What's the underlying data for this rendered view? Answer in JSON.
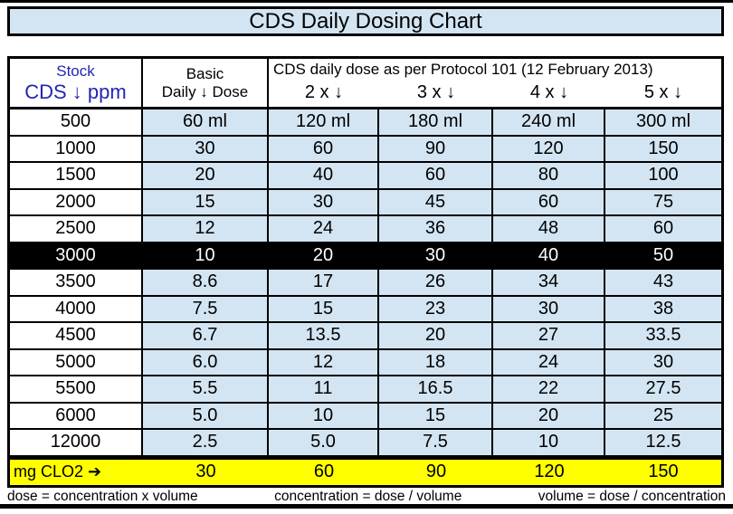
{
  "title": "CDS Daily Dosing Chart",
  "colors": {
    "light_blue": "#d3e5f3",
    "yellow": "#ffff00",
    "header_text_blue": "#2424b4",
    "highlight_bg": "#000000",
    "highlight_text": "#ffffff"
  },
  "table": {
    "header": {
      "stock_line1": "Stock",
      "stock_line2": "CDS ↓ ppm",
      "basic_line1": "Basic",
      "basic_line2": "Daily ↓ Dose",
      "protocol": "CDS daily dose as per Protocol 101 (12 February 2013)",
      "multipliers": [
        "2 x ↓",
        "3 x ↓",
        "4 x ↓",
        "5 x ↓"
      ]
    },
    "rows": [
      {
        "ppm": "500",
        "cells": [
          "60 ml",
          "120 ml",
          "180 ml",
          "240 ml",
          "300 ml"
        ]
      },
      {
        "ppm": "1000",
        "cells": [
          "30",
          "60",
          "90",
          "120",
          "150"
        ]
      },
      {
        "ppm": "1500",
        "cells": [
          "20",
          "40",
          "60",
          "80",
          "100"
        ]
      },
      {
        "ppm": "2000",
        "cells": [
          "15",
          "30",
          "45",
          "60",
          "75"
        ]
      },
      {
        "ppm": "2500",
        "cells": [
          "12",
          "24",
          "36",
          "48",
          "60"
        ]
      },
      {
        "ppm": "3000",
        "cells": [
          "10",
          "20",
          "30",
          "40",
          "50"
        ]
      },
      {
        "ppm": "3500",
        "cells": [
          "8.6",
          "17",
          "26",
          "34",
          "43"
        ]
      },
      {
        "ppm": "4000",
        "cells": [
          "7.5",
          "15",
          "23",
          "30",
          "38"
        ]
      },
      {
        "ppm": "4500",
        "cells": [
          "6.7",
          "13.5",
          "20",
          "27",
          "33.5"
        ]
      },
      {
        "ppm": "5000",
        "cells": [
          "6.0",
          "12",
          "18",
          "24",
          "30"
        ]
      },
      {
        "ppm": "5500",
        "cells": [
          "5.5",
          "11",
          "16.5",
          "22",
          "27.5"
        ]
      },
      {
        "ppm": "6000",
        "cells": [
          "5.0",
          "10",
          "15",
          "20",
          "25"
        ]
      },
      {
        "ppm": "12000",
        "cells": [
          "2.5",
          "5.0",
          "7.5",
          "10",
          "12.5"
        ]
      }
    ],
    "highlighted_ppm": "3000",
    "mg_row": {
      "label": "mg  CLO2 ➔",
      "values": [
        "30",
        "60",
        "90",
        "120",
        "150"
      ]
    }
  },
  "formulas": [
    "dose = concentration x volume",
    "concentration = dose / volume",
    "volume = dose / concentration"
  ],
  "chart_data": {
    "type": "table",
    "title": "CDS Daily Dosing Chart",
    "subtitle": "CDS daily dose as per Protocol 101 (12 February 2013)",
    "columns": [
      "Stock CDS ppm",
      "Basic Daily Dose (ml)",
      "2x (ml)",
      "3x (ml)",
      "4x (ml)",
      "5x (ml)"
    ],
    "rows": [
      [
        500,
        60,
        120,
        180,
        240,
        300
      ],
      [
        1000,
        30,
        60,
        90,
        120,
        150
      ],
      [
        1500,
        20,
        40,
        60,
        80,
        100
      ],
      [
        2000,
        15,
        30,
        45,
        60,
        75
      ],
      [
        2500,
        12,
        24,
        36,
        48,
        60
      ],
      [
        3000,
        10,
        20,
        30,
        40,
        50
      ],
      [
        3500,
        8.6,
        17,
        26,
        34,
        43
      ],
      [
        4000,
        7.5,
        15,
        23,
        30,
        38
      ],
      [
        4500,
        6.7,
        13.5,
        20,
        27,
        33.5
      ],
      [
        5000,
        6.0,
        12,
        18,
        24,
        30
      ],
      [
        5500,
        5.5,
        11,
        16.5,
        22,
        27.5
      ],
      [
        6000,
        5.0,
        10,
        15,
        20,
        25
      ],
      [
        12000,
        2.5,
        5.0,
        7.5,
        10,
        12.5
      ]
    ],
    "mg_clo2_row": [
      30,
      60,
      90,
      120,
      150
    ],
    "highlighted_row_ppm": 3000,
    "footnotes": [
      "dose = concentration x volume",
      "concentration = dose / volume",
      "volume = dose / concentration"
    ]
  }
}
